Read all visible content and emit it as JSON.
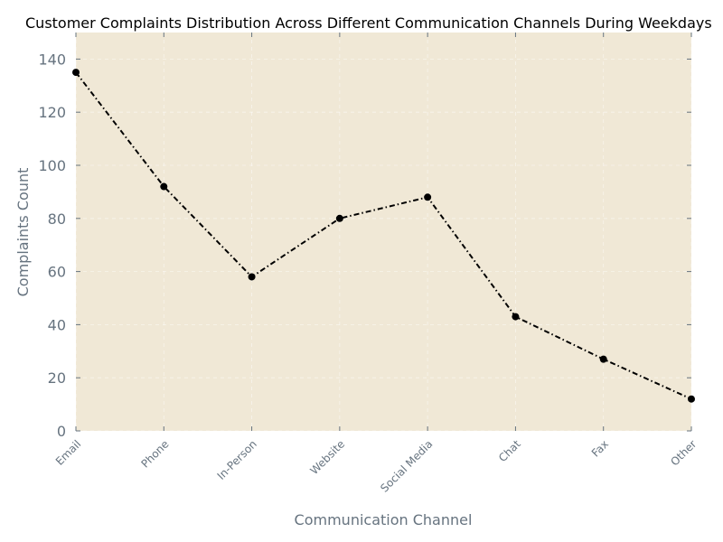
{
  "chart_data": {
    "type": "line",
    "title": "Customer Complaints Distribution Across Different Communication Channels During Weekdays",
    "xlabel": "Communication Channel",
    "ylabel": "Complaints Count",
    "categories": [
      "Email",
      "Phone",
      "In-Person",
      "Website",
      "Social Media",
      "Chat",
      "Fax",
      "Other"
    ],
    "series": [
      {
        "values": [
          135,
          92,
          58,
          80,
          88,
          43,
          27,
          12
        ]
      }
    ],
    "ylim": [
      0,
      150
    ],
    "yticks": [
      "0",
      "20",
      "40",
      "60",
      "80",
      "100",
      "120",
      "140"
    ],
    "grid": true,
    "legend": "none",
    "colors": {
      "plot_background": "#f0e8d6",
      "line": "#000000",
      "marker": "#000000",
      "axis_text": "#66737f",
      "grid": "#ffffff"
    },
    "line_style": "dash-dot",
    "marker": "circle"
  }
}
